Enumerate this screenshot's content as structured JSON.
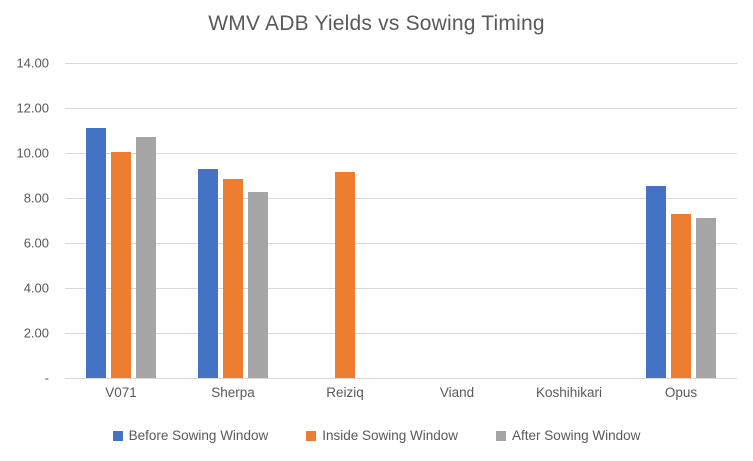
{
  "title": "WMV ADB Yields vs Sowing Timing",
  "colors": {
    "background": "#FFFFFF",
    "text": "#595959",
    "gridline": "#D9D9D9",
    "series_before": "#4472C4",
    "series_inside": "#ED7D31",
    "series_after": "#A5A5A5"
  },
  "chart_data": {
    "type": "bar",
    "title": "WMV ADB Yields vs Sowing Timing",
    "xlabel": "",
    "ylabel": "",
    "categories": [
      "V071",
      "Sherpa",
      "Reiziq",
      "Viand",
      "Koshihikari",
      "Opus"
    ],
    "series": [
      {
        "name": "Before Sowing Window",
        "color": "#4472C4",
        "values": [
          11.1,
          9.3,
          null,
          null,
          null,
          8.55
        ]
      },
      {
        "name": "Inside Sowing Window",
        "color": "#ED7D31",
        "values": [
          10.05,
          8.85,
          9.15,
          null,
          null,
          7.3
        ]
      },
      {
        "name": "After Sowing Window",
        "color": "#A5A5A5",
        "values": [
          10.7,
          8.25,
          null,
          null,
          null,
          7.1
        ]
      }
    ],
    "ylim": [
      0,
      14
    ],
    "yticks": [
      {
        "value": 14,
        "label": "14.00"
      },
      {
        "value": 12,
        "label": "12.00"
      },
      {
        "value": 10,
        "label": "10.00"
      },
      {
        "value": 8,
        "label": "8.00"
      },
      {
        "value": 6,
        "label": "6.00"
      },
      {
        "value": 4,
        "label": "4.00"
      },
      {
        "value": 2,
        "label": "2.00"
      },
      {
        "value": 0,
        "label": "-"
      }
    ],
    "grid": true,
    "legend_position": "bottom"
  }
}
